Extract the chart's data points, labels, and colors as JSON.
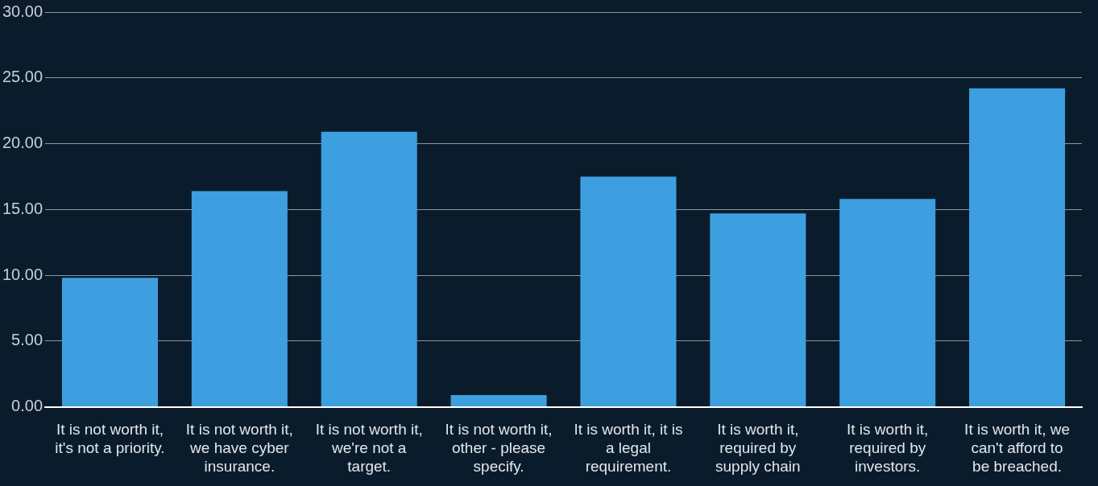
{
  "chart_data": {
    "type": "bar",
    "categories": [
      "It is not worth it, it's not a priority.",
      "It is not worth it, we have cyber insurance.",
      "It is not worth it, we're not a target.",
      "It is not worth it, other - please specify.",
      "It is worth it, it is a legal requirement.",
      "It is worth it, required by supply chain",
      "It is worth it, required by investors.",
      "It is worth it, we can't afford to be breached."
    ],
    "values": [
      9.8,
      16.4,
      20.9,
      0.9,
      17.5,
      14.7,
      15.8,
      24.2
    ],
    "color": "#3d9fe0",
    "ylim": [
      0,
      30
    ],
    "yticks": [
      {
        "value": 0,
        "label": "0.00"
      },
      {
        "value": 5,
        "label": "5.00"
      },
      {
        "value": 10,
        "label": "10.00"
      },
      {
        "value": 15,
        "label": "15.00"
      },
      {
        "value": 20,
        "label": "20.00"
      },
      {
        "value": 25,
        "label": "25.00"
      },
      {
        "value": 30,
        "label": "30.00"
      }
    ],
    "grid": "y",
    "legend": false
  }
}
